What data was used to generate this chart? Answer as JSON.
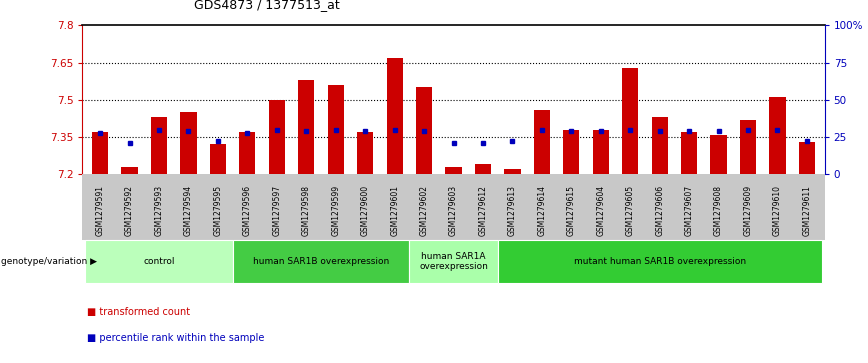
{
  "title": "GDS4873 / 1377513_at",
  "samples": [
    "GSM1279591",
    "GSM1279592",
    "GSM1279593",
    "GSM1279594",
    "GSM1279595",
    "GSM1279596",
    "GSM1279597",
    "GSM1279598",
    "GSM1279599",
    "GSM1279600",
    "GSM1279601",
    "GSM1279602",
    "GSM1279603",
    "GSM1279612",
    "GSM1279613",
    "GSM1279614",
    "GSM1279615",
    "GSM1279604",
    "GSM1279605",
    "GSM1279606",
    "GSM1279607",
    "GSM1279608",
    "GSM1279609",
    "GSM1279610",
    "GSM1279611"
  ],
  "transformed_counts": [
    7.37,
    7.23,
    7.43,
    7.45,
    7.32,
    7.37,
    7.5,
    7.58,
    7.56,
    7.37,
    7.67,
    7.55,
    7.23,
    7.24,
    7.22,
    7.46,
    7.38,
    7.38,
    7.63,
    7.43,
    7.37,
    7.36,
    7.42,
    7.51,
    7.33
  ],
  "percentile_ranks_pct": [
    28,
    21,
    30,
    29,
    22,
    28,
    30,
    29,
    30,
    29,
    30,
    29,
    21,
    21,
    22,
    30,
    29,
    29,
    30,
    29,
    29,
    29,
    30,
    30,
    22
  ],
  "ymin": 7.2,
  "ymax": 7.8,
  "yticks": [
    7.2,
    7.35,
    7.5,
    7.65,
    7.8
  ],
  "ytick_labels": [
    "7.2",
    "7.35",
    "7.5",
    "7.65",
    "7.8"
  ],
  "right_yticks": [
    0,
    25,
    50,
    75,
    100
  ],
  "right_ytick_labels": [
    "0",
    "25",
    "50",
    "75",
    "100%"
  ],
  "dotted_lines": [
    7.35,
    7.5,
    7.65
  ],
  "bar_color": "#CC0000",
  "percentile_color": "#0000BB",
  "bar_width": 0.55,
  "groups": [
    {
      "label": "control",
      "start": 0,
      "end": 4,
      "color": "#BBFFBB"
    },
    {
      "label": "human SAR1B overexpression",
      "start": 5,
      "end": 10,
      "color": "#44CC44"
    },
    {
      "label": "human SAR1A\noverexpression",
      "start": 11,
      "end": 13,
      "color": "#AAFFAA"
    },
    {
      "label": "mutant human SAR1B overexpression",
      "start": 14,
      "end": 24,
      "color": "#33CC33"
    }
  ],
  "group_row_label": "genotype/variation",
  "legend_items": [
    {
      "label": "transformed count",
      "color": "#CC0000"
    },
    {
      "label": "percentile rank within the sample",
      "color": "#0000BB"
    }
  ]
}
